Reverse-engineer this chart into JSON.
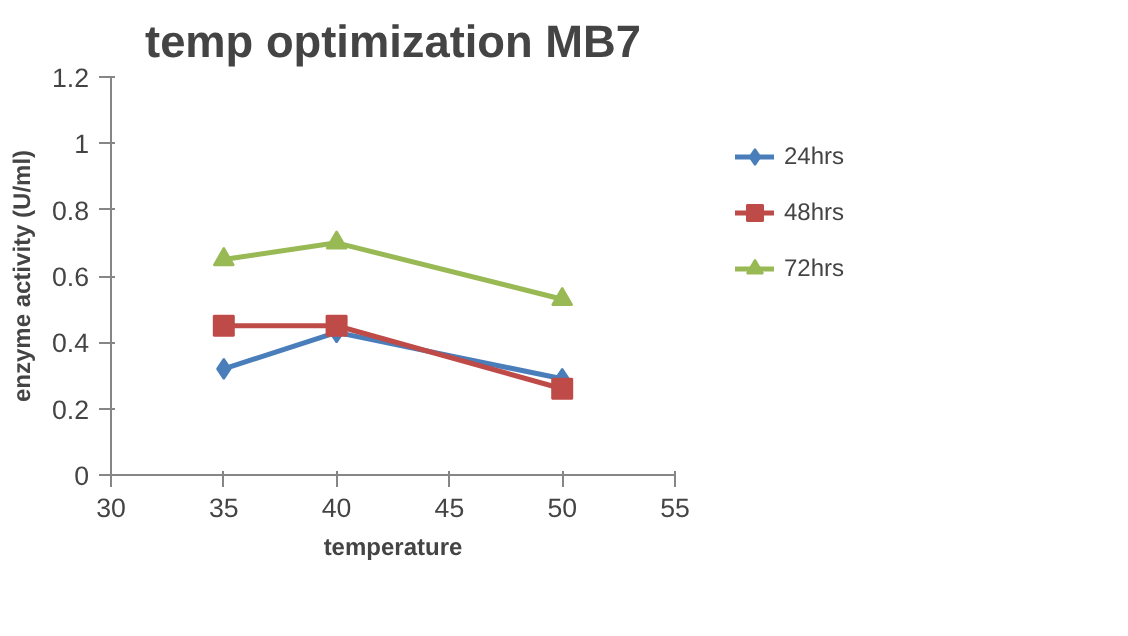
{
  "chart_data": {
    "type": "line",
    "title": "temp optimization MB7",
    "xlabel": "temperature",
    "ylabel": "enzyme activity (U/ml)",
    "x": [
      35,
      40,
      50
    ],
    "series": [
      {
        "name": "24hrs",
        "color": "#4a7ebb",
        "marker": "diamond",
        "values": [
          0.32,
          0.43,
          0.29
        ]
      },
      {
        "name": "48hrs",
        "color": "#be4b48",
        "marker": "square",
        "values": [
          0.45,
          0.45,
          0.26
        ]
      },
      {
        "name": "72hrs",
        "color": "#98b954",
        "marker": "triangle",
        "values": [
          0.65,
          0.7,
          0.53
        ]
      }
    ],
    "xlim": [
      30,
      55
    ],
    "xticks": [
      30,
      35,
      40,
      45,
      50,
      55
    ],
    "ylim": [
      0,
      1.2
    ],
    "yticks": [
      0,
      0.2,
      0.4,
      0.6,
      0.8,
      1,
      1.2
    ],
    "grid": false,
    "legend": "right"
  }
}
